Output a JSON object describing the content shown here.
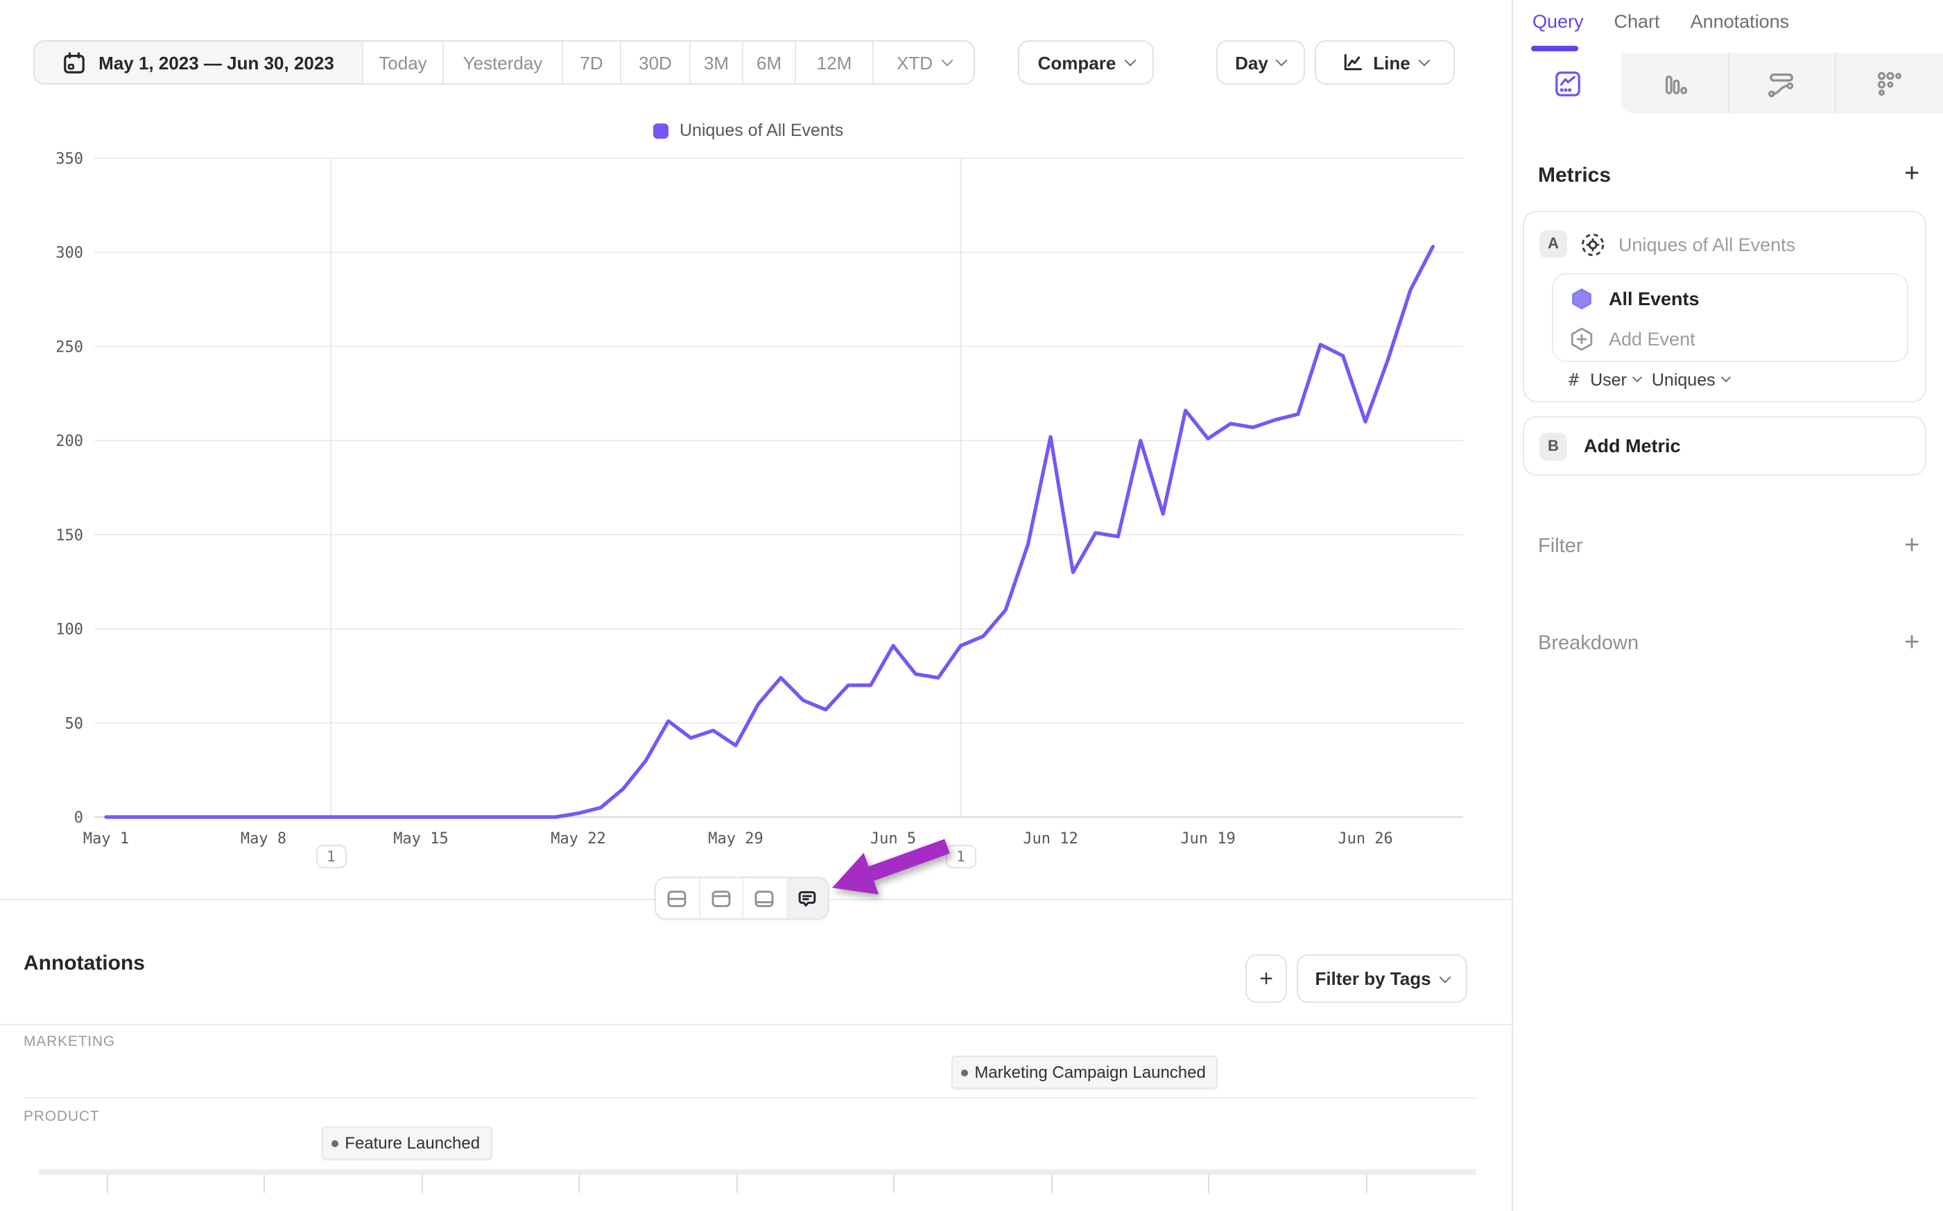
{
  "toolbar": {
    "date_range": "May 1, 2023 — Jun 30, 2023",
    "presets": [
      "Today",
      "Yesterday",
      "7D",
      "30D",
      "3M",
      "6M",
      "12M"
    ],
    "xtd_label": "XTD",
    "compare_label": "Compare",
    "granularity_label": "Day",
    "chart_type_label": "Line"
  },
  "legend": {
    "series_label": "Uniques of All Events"
  },
  "chart_data": {
    "type": "line",
    "title": "Uniques of All Events",
    "start_date": "2023-05-01",
    "x_axis_end_date": "2023-06-30",
    "x_tick_labels": [
      "May 1",
      "May 8",
      "May 15",
      "May 22",
      "May 29",
      "Jun 5",
      "Jun 12",
      "Jun 19",
      "Jun 26"
    ],
    "x_tick_days": [
      0,
      7,
      14,
      21,
      28,
      35,
      42,
      49,
      56
    ],
    "ylim": [
      0,
      350
    ],
    "y_ticks": [
      0,
      50,
      100,
      150,
      200,
      250,
      300,
      350
    ],
    "grid": "horizontal",
    "legend_position": "top-center",
    "line_color": "#7856f6",
    "values_daily": [
      0,
      0,
      0,
      0,
      0,
      0,
      0,
      0,
      0,
      0,
      0,
      0,
      0,
      0,
      0,
      0,
      0,
      0,
      0,
      0,
      0,
      2,
      5,
      15,
      30,
      51,
      42,
      46,
      38,
      60,
      74,
      62,
      57,
      70,
      70,
      91,
      76,
      74,
      91,
      96,
      110,
      145,
      202,
      130,
      151,
      149,
      200,
      161,
      216,
      201,
      209,
      207,
      211,
      214,
      251,
      245,
      210,
      243,
      280,
      303
    ],
    "annotation_markers": [
      {
        "label": "1",
        "day": 10
      },
      {
        "label": "1",
        "day": 38
      }
    ]
  },
  "mini_toolbar": {
    "buttons": [
      {
        "icon": "layout-split-horizontal-icon",
        "active": false
      },
      {
        "icon": "layout-header-top-icon",
        "active": false
      },
      {
        "icon": "layout-footer-bottom-icon",
        "active": false
      },
      {
        "icon": "comment-bubble-icon",
        "active": true
      }
    ]
  },
  "pointer": {
    "shape": "arrow-cursor",
    "color": "#a62cc6"
  },
  "annotations_panel": {
    "title": "Annotations",
    "add_label": "+",
    "filter_button": "Filter by Tags",
    "lanes": [
      {
        "name": "MARKETING",
        "chips": [
          {
            "label": "Marketing Campaign Launched",
            "day": 38
          }
        ]
      },
      {
        "name": "PRODUCT",
        "chips": [
          {
            "label": "Feature Launched",
            "day": 10
          }
        ]
      }
    ]
  },
  "sidebar": {
    "tabs": [
      {
        "label": "Query",
        "active": true
      },
      {
        "label": "Chart",
        "active": false
      },
      {
        "label": "Annotations",
        "active": false
      }
    ],
    "view_icons": [
      "insights-line",
      "bar-chart",
      "flow",
      "retention-grid"
    ],
    "metrics": {
      "heading": "Metrics",
      "add_label": "+",
      "metric_a": {
        "badge": "A",
        "name_placeholder": "Uniques of All Events",
        "events": [
          {
            "label": "All Events"
          }
        ],
        "add_event_label": "Add Event",
        "count_symbol": "#",
        "entity": "User",
        "aggregation": "Uniques"
      },
      "metric_b": {
        "badge": "B",
        "label": "Add Metric"
      }
    },
    "filter": {
      "label": "Filter",
      "add_label": "+"
    },
    "breakdown": {
      "label": "Breakdown",
      "add_label": "+"
    }
  },
  "colors": {
    "accent_purple": "#5b48e8",
    "line_purple": "#7856f6",
    "arrow_purple": "#a62cc6"
  }
}
